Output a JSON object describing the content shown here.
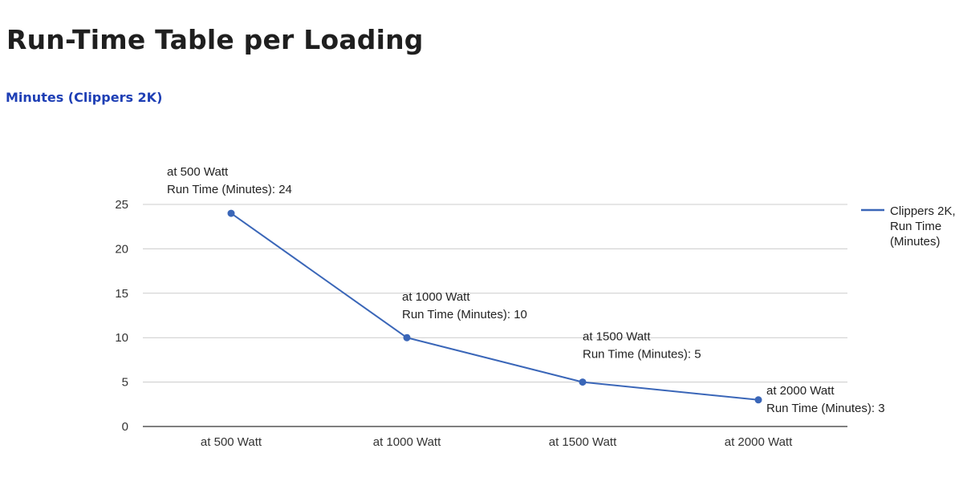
{
  "page": {
    "title": "Run-Time Table per Loading",
    "subtitle": "Minutes (Clippers 2K)"
  },
  "chart_data": {
    "type": "line",
    "categories": [
      "at 500 Watt",
      "at 1000 Watt",
      "at 1500 Watt",
      "at 2000 Watt"
    ],
    "series": [
      {
        "name": "Clippers 2K, Run Time (Minutes)",
        "legend_lines": [
          "Clippers 2K,",
          "Run Time",
          "(Minutes)"
        ],
        "color": "#3a66b8",
        "values": [
          24,
          10,
          5,
          3
        ]
      }
    ],
    "data_labels": [
      [
        "at 500 Watt",
        "Run Time (Minutes): 24"
      ],
      [
        "at 1000 Watt",
        "Run Time (Minutes): 10"
      ],
      [
        "at 1500 Watt",
        "Run Time (Minutes): 5"
      ],
      [
        "at 2000 Watt",
        "Run Time (Minutes): 3"
      ]
    ],
    "yticks": [
      0,
      5,
      10,
      15,
      20,
      25
    ],
    "ylim": [
      0,
      25
    ],
    "grid": true,
    "legend_position": "right",
    "gridline_color": "#cccccc",
    "axis_color": "#333333"
  }
}
